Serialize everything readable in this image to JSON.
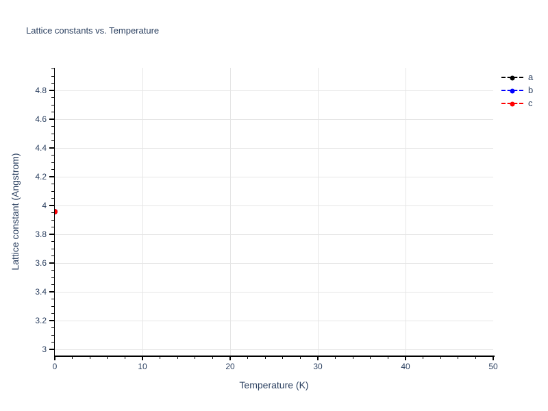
{
  "colors": {
    "text": "#2a3f5f",
    "grid": "#e5e5e5",
    "axis": "#000000",
    "background": "#ffffff"
  },
  "chart_data": {
    "type": "scatter",
    "title": "Lattice constants vs. Temperature",
    "xlabel": "Temperature (K)",
    "ylabel": "Lattice  constant (Angstrom)",
    "xlim": [
      0,
      50
    ],
    "ylim": [
      2.958,
      4.958
    ],
    "x_major_ticks": [
      0,
      10,
      20,
      30,
      40,
      50
    ],
    "x_tick_labels": [
      "0",
      "10",
      "20",
      "30",
      "40",
      "50"
    ],
    "x_minor_step": 2,
    "x_gridlines": [
      10,
      20,
      30,
      40
    ],
    "y_major_ticks": [
      3,
      3.2,
      3.4,
      3.6,
      3.8,
      4,
      4.2,
      4.4,
      4.6,
      4.8
    ],
    "y_tick_labels": [
      "3",
      "3.2",
      "3.4",
      "3.6",
      "3.8",
      "4",
      "4.2",
      "4.4",
      "4.6",
      "4.8"
    ],
    "y_minor_step": 0.05,
    "grid": true,
    "legend_position": "top-right-outside",
    "series": [
      {
        "name": "a",
        "color": "#000000",
        "line_style": "dash",
        "marker": "circle",
        "points": [
          {
            "x": 0,
            "y": 3.96
          }
        ]
      },
      {
        "name": "b",
        "color": "#0000ff",
        "line_style": "dash",
        "marker": "circle",
        "points": [
          {
            "x": 0,
            "y": 3.96
          }
        ]
      },
      {
        "name": "c",
        "color": "#ff0000",
        "line_style": "dash",
        "marker": "circle",
        "points": [
          {
            "x": 0,
            "y": 3.96
          }
        ]
      }
    ],
    "note": "All three series overlap at (0, ~3.96); only the red series-c marker is visible on top, half-clipped at the y-axis."
  }
}
